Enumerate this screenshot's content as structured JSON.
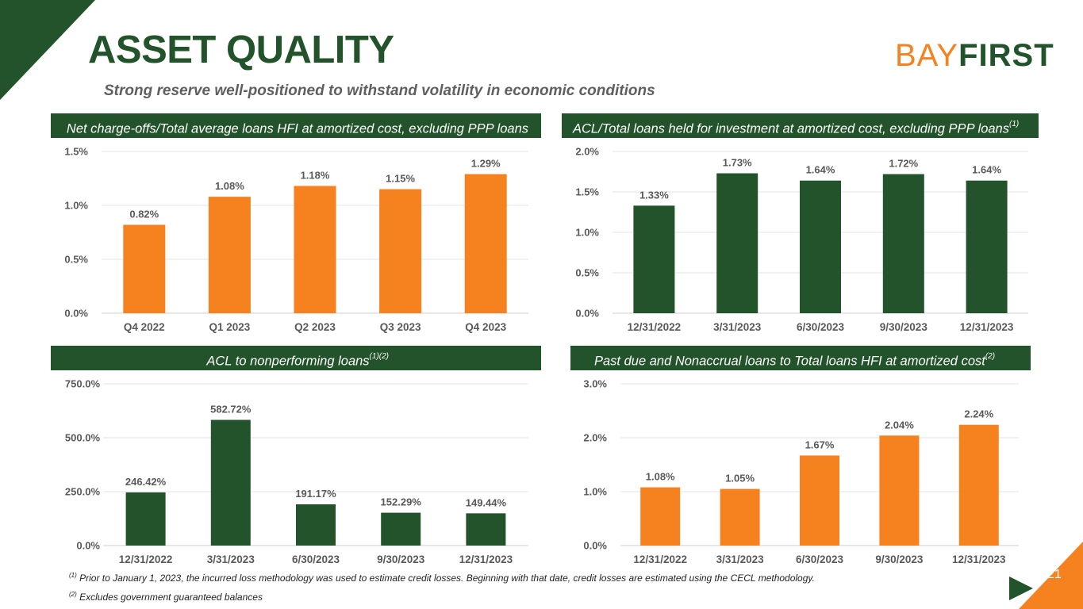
{
  "slide": {
    "title": "ASSET QUALITY",
    "subtitle": "Strong reserve well-positioned to withstand volatility in economic conditions",
    "logo_left": "BAY",
    "logo_right": "FIRST",
    "page_number": "21",
    "footnote1_mark": "(1)",
    "footnote1": "Prior to January 1, 2023, the incurred loss methodology was used to estimate credit losses. Beginning with that date, credit losses are estimated using the CECL methodology.",
    "footnote2_mark": "(2)",
    "footnote2": "Excludes government guaranteed balances"
  },
  "colors": {
    "green": "#22532a",
    "orange": "#f5821f",
    "grid": "#e3e3e3",
    "axis_text": "#595959"
  },
  "headers": [
    {
      "text": "Net charge-offs/Total average loans HFI at amortized cost, excluding PPP loans",
      "sup": ""
    },
    {
      "text": "ACL/Total loans held for investment at amortized cost, excluding PPP loans",
      "sup": "(1)"
    },
    {
      "text": "ACL to nonperforming loans",
      "sup": "(1)(2)"
    },
    {
      "text": "Past due and Nonaccrual loans to Total loans HFI at amortized cost",
      "sup": "(2)"
    }
  ],
  "chart_data": [
    {
      "type": "bar",
      "title": "Net charge-offs/Total average loans HFI at amortized cost, excluding PPP loans",
      "categories": [
        "Q4 2022",
        "Q1 2023",
        "Q2 2023",
        "Q3 2023",
        "Q4 2023"
      ],
      "values": [
        0.82,
        1.08,
        1.18,
        1.15,
        1.29
      ],
      "labels": [
        "0.82%",
        "1.08%",
        "1.18%",
        "1.15%",
        "1.29%"
      ],
      "ylim": [
        0,
        1.5
      ],
      "yticks": [
        0,
        0.5,
        1.0,
        1.5
      ],
      "ytick_labels": [
        "0.0%",
        "0.5%",
        "1.0%",
        "1.5%"
      ],
      "color": "#f5821f"
    },
    {
      "type": "bar",
      "title": "ACL/Total loans held for investment at amortized cost, excluding PPP loans",
      "categories": [
        "12/31/2022",
        "3/31/2023",
        "6/30/2023",
        "9/30/2023",
        "12/31/2023"
      ],
      "values": [
        1.33,
        1.73,
        1.64,
        1.72,
        1.64
      ],
      "labels": [
        "1.33%",
        "1.73%",
        "1.64%",
        "1.72%",
        "1.64%"
      ],
      "ylim": [
        0,
        2.0
      ],
      "yticks": [
        0,
        0.5,
        1.0,
        1.5,
        2.0
      ],
      "ytick_labels": [
        "0.0%",
        "0.5%",
        "1.0%",
        "1.5%",
        "2.0%"
      ],
      "color": "#22532a"
    },
    {
      "type": "bar",
      "title": "ACL to nonperforming loans",
      "categories": [
        "12/31/2022",
        "3/31/2023",
        "6/30/2023",
        "9/30/2023",
        "12/31/2023"
      ],
      "values": [
        246.42,
        582.72,
        191.17,
        152.29,
        149.44
      ],
      "labels": [
        "246.42%",
        "582.72%",
        "191.17%",
        "152.29%",
        "149.44%"
      ],
      "ylim": [
        0,
        750
      ],
      "yticks": [
        0,
        250,
        500,
        750
      ],
      "ytick_labels": [
        "0.0%",
        "250.0%",
        "500.0%",
        "750.0%"
      ],
      "color": "#22532a"
    },
    {
      "type": "bar",
      "title": "Past due and Nonaccrual loans to Total loans HFI at amortized cost",
      "categories": [
        "12/31/2022",
        "3/31/2023",
        "6/30/2023",
        "9/30/2023",
        "12/31/2023"
      ],
      "values": [
        1.08,
        1.05,
        1.67,
        2.04,
        2.24
      ],
      "labels": [
        "1.08%",
        "1.05%",
        "1.67%",
        "2.04%",
        "2.24%"
      ],
      "ylim": [
        0,
        3.0
      ],
      "yticks": [
        0,
        1.0,
        2.0,
        3.0
      ],
      "ytick_labels": [
        "0.0%",
        "1.0%",
        "2.0%",
        "3.0%"
      ],
      "color": "#f5821f"
    }
  ]
}
